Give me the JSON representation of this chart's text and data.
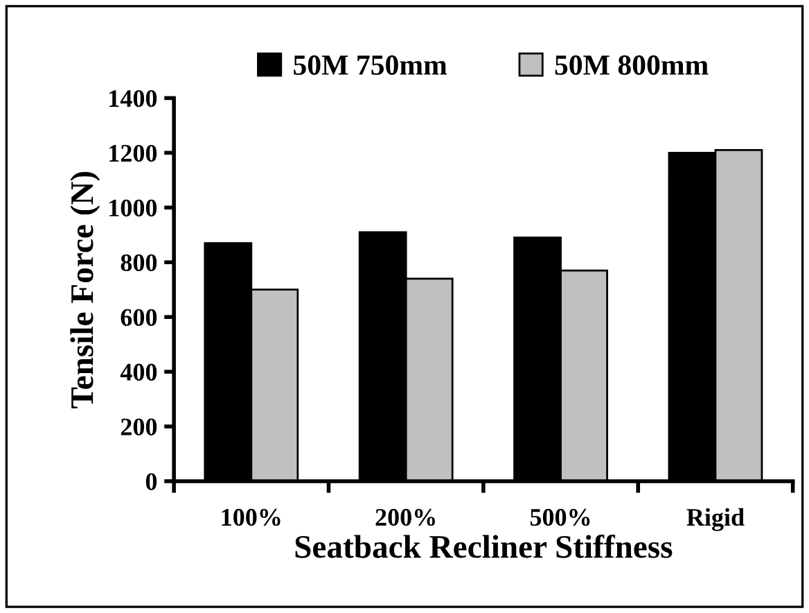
{
  "chart_data": {
    "type": "bar",
    "xlabel": "Seatback Recliner Stiffness",
    "ylabel": "Tensile Force (N)",
    "categories": [
      "100%",
      "200%",
      "500%",
      "Rigid"
    ],
    "series": [
      {
        "name": "50M 750mm",
        "color": "#000000",
        "values": [
          870,
          910,
          890,
          1200
        ]
      },
      {
        "name": "50M 800mm",
        "color": "#c0c0c0",
        "values": [
          700,
          740,
          770,
          1210
        ]
      }
    ],
    "ylim": [
      0,
      1400
    ],
    "yticks": [
      0,
      200,
      400,
      600,
      800,
      1000,
      1200,
      1400
    ],
    "grid": false,
    "legend": "top"
  }
}
